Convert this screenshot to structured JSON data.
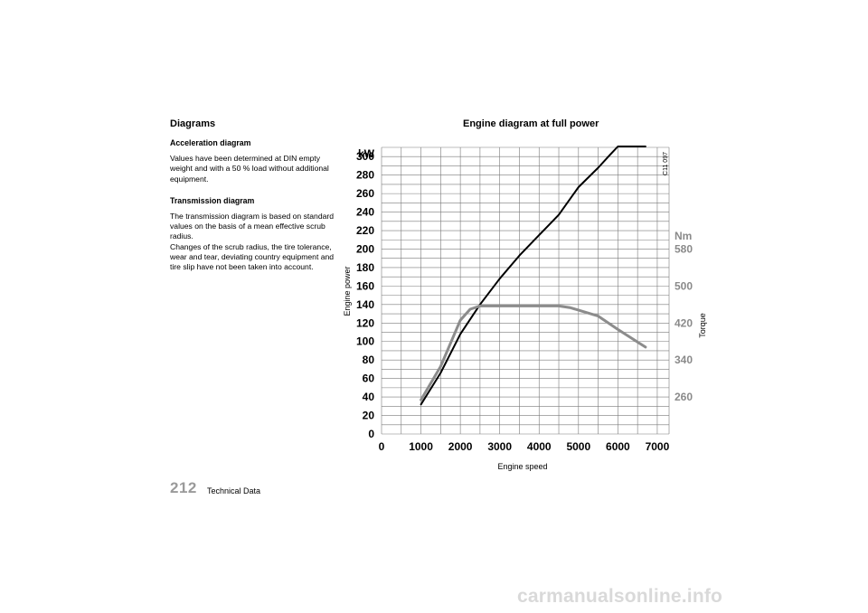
{
  "left": {
    "section_title": "Diagrams",
    "acceleration": {
      "heading": "Acceleration diagram",
      "text": "Values have been determined at DIN empty weight and with a 50 % load without additional equipment."
    },
    "transmission": {
      "heading": "Transmission diagram",
      "text1": "The transmission diagram is based on standard values on the basis of a mean effective scrub radius.",
      "text2": "Changes of the scrub radius, the tire tolerance, wear and tear, deviating country equipment and tire slip have not been taken into account."
    }
  },
  "footer": {
    "page_number": "212",
    "title": "Technical Data"
  },
  "watermark": "carmanualsonline.info",
  "colors": {
    "power_curve": "#000000",
    "torque_curve": "#8c8c8c",
    "grid": "#7a7a7a",
    "torque_ticks": "#8a8a8a"
  },
  "chart_data": {
    "type": "line",
    "title": "Engine diagram at full power",
    "xlabel": "Engine speed",
    "ylabel": "Engine power",
    "y2label": "Torque",
    "y_unit": "kW",
    "y2_unit": "Nm",
    "code": "C11 097",
    "xlim": [
      0,
      7300
    ],
    "ylim": [
      0,
      310
    ],
    "x_ticks": [
      "0",
      "1000",
      "2000",
      "3000",
      "4000",
      "5000",
      "6000",
      "7000"
    ],
    "y_ticks": [
      "0",
      "20",
      "40",
      "60",
      "80",
      "100",
      "120",
      "140",
      "160",
      "180",
      "200",
      "220",
      "240",
      "260",
      "280",
      "300"
    ],
    "y2_ticks": [
      "260",
      "340",
      "420",
      "500",
      "580"
    ],
    "grid": true,
    "series": [
      {
        "name": "Engine power",
        "axis": "left",
        "x": [
          1000,
          1500,
          2000,
          2500,
          3000,
          3500,
          4000,
          4500,
          5000,
          5500,
          5800,
          6000,
          6700
        ],
        "y": [
          32,
          66,
          108,
          140,
          168,
          193,
          215,
          237,
          267,
          288,
          302,
          311,
          311
        ]
      },
      {
        "name": "Torque",
        "axis": "right",
        "x": [
          1000,
          1500,
          2000,
          2250,
          2500,
          3000,
          3500,
          4000,
          4500,
          4800,
          5500,
          6000,
          6700
        ],
        "y": [
          254,
          326,
          426,
          450,
          457,
          457,
          457,
          457,
          457,
          453,
          435,
          406,
          368
        ]
      }
    ]
  }
}
